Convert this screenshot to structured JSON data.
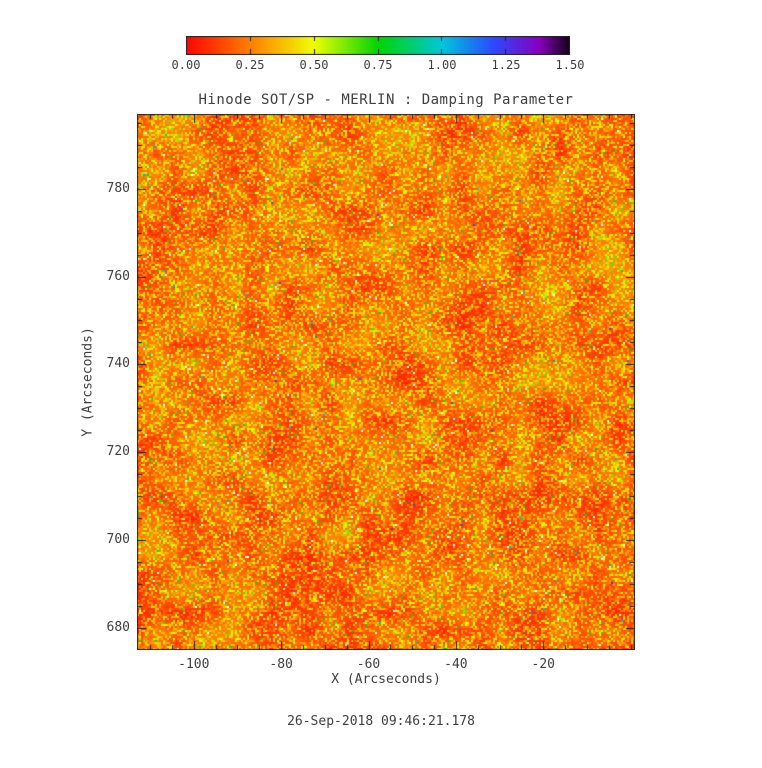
{
  "header": {
    "colorbar": {
      "tick_labels": [
        "0.00",
        "0.25",
        "0.50",
        "0.75",
        "1.00",
        "1.25",
        "1.50"
      ]
    }
  },
  "chart_data": {
    "type": "heatmap",
    "title": "Hinode SOT/SP - MERLIN : Damping Parameter",
    "xlabel": "X (Arcseconds)",
    "ylabel": "Y (Arcseconds)",
    "xlim": [
      -113,
      1
    ],
    "ylim": [
      675,
      797
    ],
    "xticks": [
      -100,
      -80,
      -60,
      -40,
      -20
    ],
    "yticks": [
      680,
      700,
      720,
      740,
      760,
      780
    ],
    "minor_tick_step": 5,
    "grid": false,
    "colorbar": {
      "min": 0.0,
      "max": 1.5,
      "ticks": [
        0.0,
        0.25,
        0.5,
        0.75,
        1.0,
        1.25,
        1.5
      ],
      "orientation": "horizontal",
      "position": "top"
    },
    "colormap_stops": [
      {
        "v": 0.0,
        "c": "#ff0500"
      },
      {
        "v": 0.28,
        "c": "#ff8e00"
      },
      {
        "v": 0.5,
        "c": "#eeff00"
      },
      {
        "v": 0.75,
        "c": "#00d400"
      },
      {
        "v": 1.0,
        "c": "#00c6da"
      },
      {
        "v": 1.2,
        "c": "#2b4bff"
      },
      {
        "v": 1.38,
        "c": "#8800c0"
      },
      {
        "v": 1.5,
        "c": "#120016"
      }
    ],
    "value_distribution": {
      "description": "noisy solar map, mostly 0.05-0.35 (red/orange) with sparse yellow-green speckles and rare white missing pixels",
      "seed": 1234,
      "base": 0.05,
      "patch_amp": 0.22,
      "noise_amp": 0.4,
      "speckle_prob": 0.018,
      "speckle_range": [
        0.35,
        0.8
      ],
      "cyan_prob": 0.0012,
      "white_prob": 0.006
    }
  },
  "footer": {
    "timestamp": "26-Sep-2018 09:46:21.178"
  }
}
